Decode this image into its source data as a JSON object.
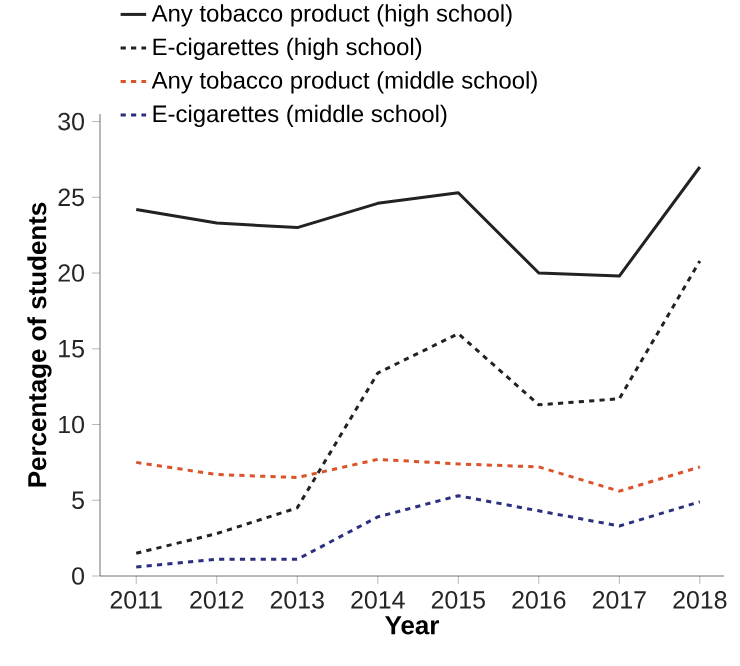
{
  "chart_data": {
    "type": "line",
    "xlabel": "Year",
    "ylabel": "Percentage of students",
    "x": [
      2011,
      2012,
      2013,
      2014,
      2015,
      2016,
      2017,
      2018
    ],
    "series": [
      {
        "name": "Any tobacco product (high school)",
        "color": "#222222",
        "line_style": "solid",
        "values": [
          24.2,
          23.3,
          23.0,
          24.6,
          25.3,
          20.0,
          19.8,
          27.0
        ]
      },
      {
        "name": "E-cigarettes (high school)",
        "color": "#222222",
        "line_style": "dashed",
        "values": [
          1.5,
          2.8,
          4.5,
          13.4,
          16.0,
          11.3,
          11.7,
          20.8
        ]
      },
      {
        "name": "Any tobacco product (middle school)",
        "color": "#d9532b",
        "line_style": "dashed",
        "values": [
          7.5,
          6.7,
          6.5,
          7.7,
          7.4,
          7.2,
          5.6,
          7.2
        ]
      },
      {
        "name": "E-cigarettes  (middle school)",
        "color": "#2b2f7f",
        "line_style": "dashed",
        "values": [
          0.6,
          1.1,
          1.1,
          3.9,
          5.3,
          4.3,
          3.3,
          4.9
        ]
      }
    ],
    "xlim": [
      2010.55,
      2018.3
    ],
    "ylim": [
      0,
      30.5
    ],
    "xticks": [
      2011,
      2012,
      2013,
      2014,
      2015,
      2016,
      2017,
      2018
    ],
    "yticks": [
      0,
      5,
      10,
      15,
      20,
      25,
      30
    ],
    "grid": false,
    "legend": "top"
  }
}
